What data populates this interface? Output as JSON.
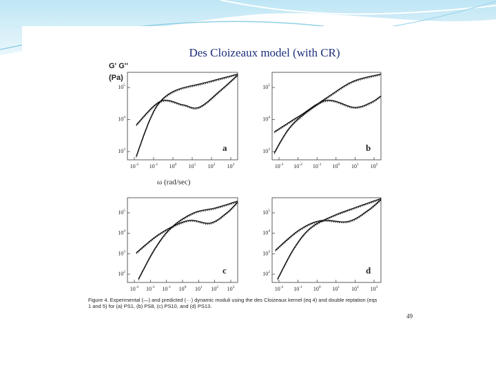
{
  "title": "Des Cloizeaux model (with CR)",
  "figure": {
    "y_label": "G' G''",
    "y_unit": "(Pa)",
    "x_label": "ω (rad/sec)",
    "panels": [
      {
        "letter": "a",
        "xticks": [
          {
            "base": "10",
            "exp": "-2"
          },
          {
            "base": "10",
            "exp": "-1"
          },
          {
            "base": "10",
            "exp": "0"
          },
          {
            "base": "10",
            "exp": "1"
          },
          {
            "base": "10",
            "exp": "2"
          },
          {
            "base": "10",
            "exp": "3"
          }
        ],
        "yticks": [
          {
            "base": "10",
            "exp": "5"
          },
          {
            "base": "10",
            "exp": "4"
          },
          {
            "base": "10",
            "exp": "3"
          }
        ]
      },
      {
        "letter": "b",
        "xticks": [
          {
            "base": "10",
            "exp": "-3"
          },
          {
            "base": "10",
            "exp": "-2"
          },
          {
            "base": "10",
            "exp": "-1"
          },
          {
            "base": "10",
            "exp": "0"
          },
          {
            "base": "10",
            "exp": "1"
          },
          {
            "base": "10",
            "exp": "2"
          }
        ],
        "yticks": [
          {
            "base": "10",
            "exp": "5"
          },
          {
            "base": "10",
            "exp": "4"
          },
          {
            "base": "10",
            "exp": "3"
          }
        ]
      },
      {
        "letter": "c",
        "xticks": [
          {
            "base": "10",
            "exp": "-3"
          },
          {
            "base": "10",
            "exp": "-2"
          },
          {
            "base": "10",
            "exp": "-1"
          },
          {
            "base": "10",
            "exp": "0"
          },
          {
            "base": "10",
            "exp": "1"
          },
          {
            "base": "10",
            "exp": "2"
          },
          {
            "base": "10",
            "exp": "3"
          }
        ],
        "yticks": [
          {
            "base": "10",
            "exp": "5"
          },
          {
            "base": "10",
            "exp": "4"
          },
          {
            "base": "10",
            "exp": "3"
          },
          {
            "base": "10",
            "exp": "2"
          }
        ]
      },
      {
        "letter": "d",
        "xticks": [
          {
            "base": "10",
            "exp": "-2"
          },
          {
            "base": "10",
            "exp": "-1"
          },
          {
            "base": "10",
            "exp": "0"
          },
          {
            "base": "10",
            "exp": "1"
          },
          {
            "base": "10",
            "exp": "2"
          },
          {
            "base": "10",
            "exp": "3"
          }
        ],
        "yticks": [
          {
            "base": "10",
            "exp": "5"
          },
          {
            "base": "10",
            "exp": "4"
          },
          {
            "base": "10",
            "exp": "3"
          },
          {
            "base": "10",
            "exp": "2"
          }
        ]
      }
    ],
    "caption": [
      "Figure 4.  Experimental (—) and predicted (···) dynamic moduli using the des Cloizeaux kernel (eq 4) and double reptation (eqs",
      "1 and 5) for (a) PS1, (b) PS8, (c) PS10, and (d) PS13."
    ],
    "page_number": "49"
  }
}
